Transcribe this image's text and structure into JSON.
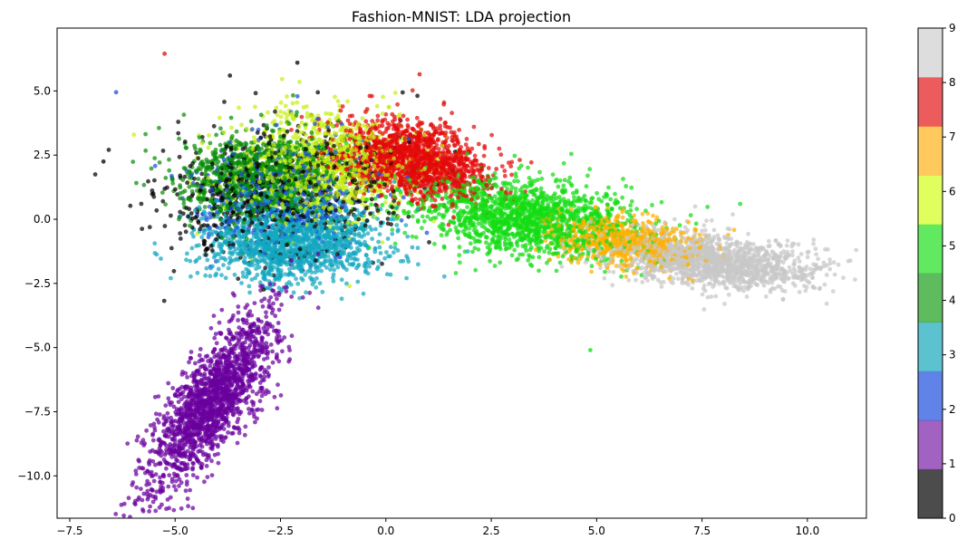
{
  "chart_data": {
    "type": "scatter",
    "title": "Fashion-MNIST: LDA projection",
    "xlabel": "",
    "ylabel": "",
    "xlim": [
      -7.8,
      11.4
    ],
    "ylim": [
      -11.65,
      7.45
    ],
    "xticks": [
      -7.5,
      -5.0,
      -2.5,
      0.0,
      2.5,
      5.0,
      7.5,
      10.0
    ],
    "xtick_labels": [
      "−7.5",
      "−5.0",
      "−2.5",
      "0.0",
      "2.5",
      "5.0",
      "7.5",
      "10.0"
    ],
    "yticks": [
      5.0,
      2.5,
      0.0,
      -2.5,
      -5.0,
      -7.5,
      -10.0
    ],
    "ytick_labels": [
      "5.0",
      "2.5",
      "0.0",
      "−2.5",
      "−5.0",
      "−7.5",
      "−10.0"
    ],
    "colorbar": {
      "range": [
        0,
        9
      ],
      "ticks": [
        "0",
        "1",
        "2",
        "3",
        "4",
        "5",
        "6",
        "7",
        "8",
        "9"
      ],
      "colors": [
        "#000000",
        "#7a1fa8",
        "#1d4fe0",
        "#18a8bb",
        "#1a9e1a",
        "#1fe01f",
        "#d3fd1a",
        "#ffb21a",
        "#e61717",
        "#cfcfcf"
      ],
      "alpha": 0.7
    },
    "classes": [
      {
        "label": 0,
        "color": "#000000",
        "center": [
          -2.6,
          0.9
        ],
        "spread": [
          1.35,
          1.25
        ],
        "corr": 0.15,
        "n": 700
      },
      {
        "label": 1,
        "color": "#6a009e",
        "center": [
          -4.1,
          -7.0
        ],
        "spread": [
          0.75,
          1.75
        ],
        "corr": 0.78,
        "n": 1700
      },
      {
        "label": 2,
        "color": "#1d4fe0",
        "center": [
          -2.4,
          1.0
        ],
        "spread": [
          1.0,
          1.0
        ],
        "corr": 0.1,
        "n": 500
      },
      {
        "label": 3,
        "color": "#13a7c0",
        "center": [
          -2.2,
          -0.9
        ],
        "spread": [
          1.05,
          0.8
        ],
        "corr": 0.05,
        "n": 1400
      },
      {
        "label": 4,
        "color": "#0a8f0a",
        "center": [
          -3.0,
          1.7
        ],
        "spread": [
          1.0,
          0.85
        ],
        "corr": 0.1,
        "n": 1000
      },
      {
        "label": 5,
        "color": "#14dc14",
        "center": [
          3.2,
          0.1
        ],
        "spread": [
          1.35,
          0.8
        ],
        "corr": -0.35,
        "n": 1500
      },
      {
        "label": 6,
        "color": "#c8ee14",
        "center": [
          -1.5,
          2.1
        ],
        "spread": [
          1.05,
          1.05
        ],
        "corr": 0.0,
        "n": 1000
      },
      {
        "label": 7,
        "color": "#ffb000",
        "center": [
          5.7,
          -0.9
        ],
        "spread": [
          0.9,
          0.5
        ],
        "corr": -0.3,
        "n": 700
      },
      {
        "label": 8,
        "color": "#e30a0a",
        "center": [
          0.6,
          2.3
        ],
        "spread": [
          0.9,
          0.75
        ],
        "corr": -0.3,
        "n": 1500
      },
      {
        "label": 9,
        "color": "#c8c8c8",
        "center": [
          7.7,
          -1.6
        ],
        "spread": [
          1.25,
          0.55
        ],
        "corr": -0.4,
        "n": 1500
      }
    ],
    "outliers": [
      {
        "x": -6.4,
        "y": 4.95,
        "c": 2
      },
      {
        "x": -5.25,
        "y": 6.45,
        "c": 8
      },
      {
        "x": -6.7,
        "y": 2.25,
        "c": 0
      },
      {
        "x": 4.85,
        "y": -5.1,
        "c": 5
      },
      {
        "x": -2.1,
        "y": 6.1,
        "c": 0
      },
      {
        "x": -3.7,
        "y": 5.6,
        "c": 0
      },
      {
        "x": 0.8,
        "y": 5.65,
        "c": 8
      }
    ]
  }
}
